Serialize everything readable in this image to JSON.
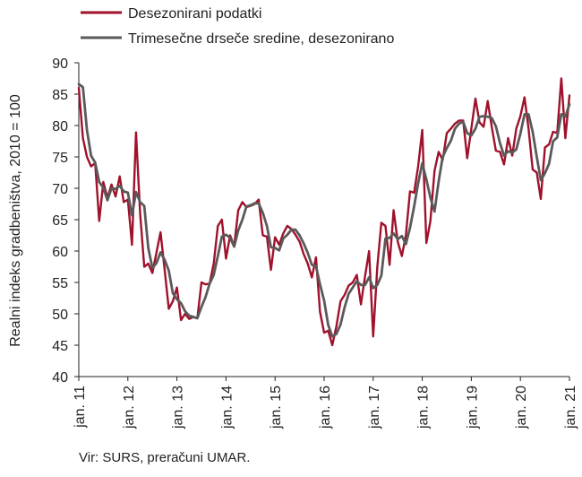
{
  "chart_data": {
    "type": "line",
    "title": "",
    "ylabel": "Realni indeks gradbeništva, 2010 = 100",
    "xlabel": "",
    "ylim": [
      40,
      90
    ],
    "yticks": [
      40,
      45,
      50,
      55,
      60,
      65,
      70,
      75,
      80,
      85,
      90
    ],
    "xticks": [
      {
        "label": "jan. 11",
        "t": 2011.0
      },
      {
        "label": "jan. 12",
        "t": 2012.0
      },
      {
        "label": "jan. 13",
        "t": 2013.0
      },
      {
        "label": "jan. 14",
        "t": 2014.0
      },
      {
        "label": "jan. 15",
        "t": 2015.0
      },
      {
        "label": "jan. 16",
        "t": 2016.0
      },
      {
        "label": "jan. 17",
        "t": 2017.0
      },
      {
        "label": "jan. 18",
        "t": 2018.0
      },
      {
        "label": "jan. 19",
        "t": 2019.0
      },
      {
        "label": "jan. 20",
        "t": 2020.0
      },
      {
        "label": "jan. 21",
        "t": 2021.0
      }
    ],
    "x_start": "2011-01",
    "x_end": "2021-01",
    "grid": false,
    "legend_position": "top",
    "series": [
      {
        "name": "Desezonirani podatki",
        "color": "#a0112b",
        "values": [
          86,
          78,
          75,
          73.5,
          74,
          64.8,
          71,
          68.5,
          70.6,
          68.7,
          71.9,
          67.8,
          68.2,
          61,
          78.9,
          66,
          57.5,
          58,
          56.5,
          59.8,
          63,
          57,
          50.8,
          52,
          54.2,
          49,
          50,
          49.2,
          49.5,
          49.3,
          55,
          54.7,
          54.8,
          58,
          64,
          65,
          58.8,
          62.5,
          60.8,
          66.5,
          67.8,
          67,
          67.2,
          67.5,
          68.2,
          62.5,
          62.3,
          57,
          62.2,
          61,
          62.8,
          64,
          63.5,
          62.6,
          61.5,
          59.5,
          58,
          55.8,
          59,
          50.3,
          47,
          47.3,
          45,
          48,
          52,
          53,
          54.5,
          55,
          56.2,
          51.5,
          56,
          60,
          46.4,
          57.5,
          64.5,
          64,
          57.8,
          66.5,
          61.5,
          59.2,
          62.5,
          69.5,
          69.3,
          73.5,
          79.3,
          61.3,
          64.8,
          72.8,
          75.8,
          74.5,
          78.8,
          79.5,
          80.3,
          80.8,
          80.8,
          74.8,
          79.5,
          84.3,
          80.5,
          79.8,
          83.9,
          79.8,
          76,
          75.8,
          73.8,
          78,
          75.2,
          79.5,
          81.5,
          84.5,
          79.5,
          73,
          72.5,
          68.3,
          76.5,
          77,
          79,
          78.8,
          87.5,
          78,
          84.8
        ]
      },
      {
        "name": "Trimesečne drseče sredine, desezonirano",
        "color": "#5a5a5a",
        "values": [
          86.6,
          86.1,
          79.3,
          75.2,
          74.1,
          71.0,
          70.1,
          68.1,
          70.0,
          69.9,
          70.4,
          69.5,
          69.3,
          65.7,
          69.4,
          67.8,
          67.2,
          60.5,
          57.3,
          58.1,
          59.8,
          58.6,
          56.9,
          53.3,
          52.3,
          51.7,
          50.4,
          49.7,
          49.5,
          49.3,
          51.1,
          52.7,
          54.8,
          56.2,
          59.2,
          62.3,
          62.6,
          62.1,
          60.7,
          63.3,
          65.0,
          67.1,
          67.3,
          67.6,
          67.6,
          66.1,
          64.0,
          60.6,
          60.5,
          60.1,
          62.0,
          62.6,
          63.4,
          63.4,
          62.5,
          61.2,
          59.7,
          57.8,
          57.6,
          54.7,
          52.1,
          48.2,
          46.4,
          46.8,
          48.3,
          51.0,
          53.2,
          54.2,
          55.2,
          54.6,
          54.6,
          55.8,
          54.1,
          54.6,
          56.1,
          62.0,
          62.1,
          62.8,
          61.9,
          62.4,
          61.1,
          63.7,
          67.1,
          70.8,
          74.0,
          71.4,
          68.5,
          66.3,
          71.1,
          75.0,
          76.4,
          77.6,
          79.5,
          80.3,
          80.6,
          78.8,
          78.4,
          79.5,
          81.4,
          81.5,
          81.4,
          81.2,
          79.9,
          77.2,
          75.2,
          75.9,
          75.7,
          76.2,
          78.7,
          81.8,
          81.8,
          79.0,
          75.0,
          71.3,
          72.4,
          73.9,
          77.5,
          78.1,
          81.8,
          81.4,
          83.4
        ]
      }
    ]
  },
  "source_note": "Vir: SURS, preračuni UMAR."
}
